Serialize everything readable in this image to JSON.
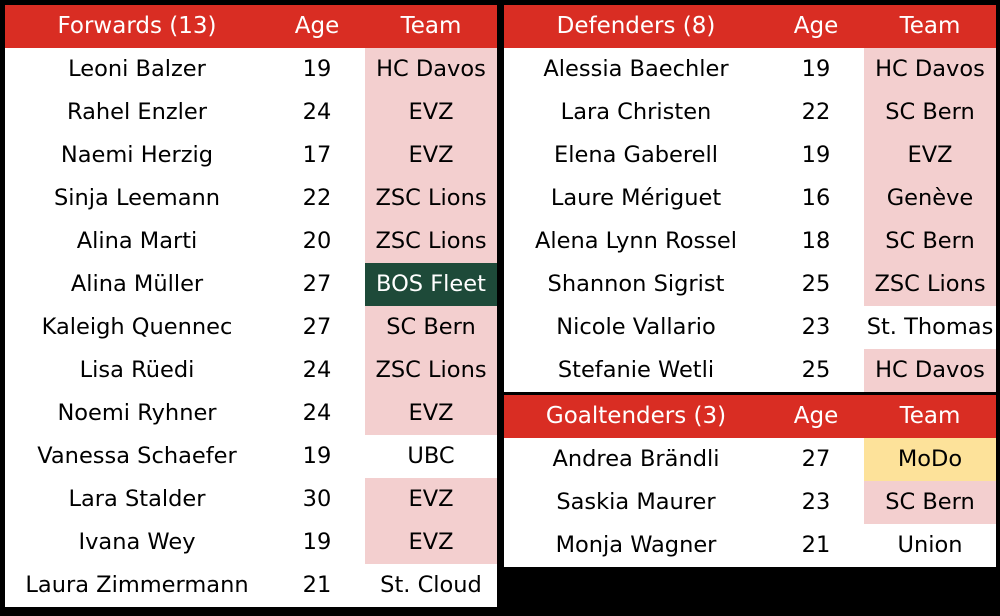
{
  "colors": {
    "header_bg": "#d92d23",
    "header_text": "#ffffff",
    "swiss_club_bg": "#f3cfcf",
    "nwhl_club_bg": "#1e4a39",
    "sdhl_club_bg": "#fde29a",
    "default_bg": "#ffffff",
    "frame": "#000000"
  },
  "forwards": {
    "header": {
      "position": "Forwards (13)",
      "age": "Age",
      "team": "Team"
    },
    "rows": [
      {
        "name": "Leoni Balzer",
        "age": "19",
        "team": "HC Davos",
        "style": "pink"
      },
      {
        "name": "Rahel Enzler",
        "age": "24",
        "team": "EVZ",
        "style": "pink"
      },
      {
        "name": "Naemi Herzig",
        "age": "17",
        "team": "EVZ",
        "style": "pink"
      },
      {
        "name": "Sinja Leemann",
        "age": "22",
        "team": "ZSC Lions",
        "style": "pink"
      },
      {
        "name": "Alina Marti",
        "age": "20",
        "team": "ZSC Lions",
        "style": "pink"
      },
      {
        "name": "Alina Müller",
        "age": "27",
        "team": "BOS Fleet",
        "style": "green"
      },
      {
        "name": "Kaleigh Quennec",
        "age": "27",
        "team": "SC Bern",
        "style": "pink"
      },
      {
        "name": "Lisa Rüedi",
        "age": "24",
        "team": "ZSC Lions",
        "style": "pink"
      },
      {
        "name": "Noemi Ryhner",
        "age": "24",
        "team": "EVZ",
        "style": "pink"
      },
      {
        "name": "Vanessa Schaefer",
        "age": "19",
        "team": "UBC",
        "style": "white"
      },
      {
        "name": "Lara Stalder",
        "age": "30",
        "team": "EVZ",
        "style": "pink"
      },
      {
        "name": "Ivana Wey",
        "age": "19",
        "team": "EVZ",
        "style": "pink"
      },
      {
        "name": "Laura Zimmermann",
        "age": "21",
        "team": "St. Cloud",
        "style": "white"
      }
    ]
  },
  "defenders": {
    "header": {
      "position": "Defenders (8)",
      "age": "Age",
      "team": "Team"
    },
    "rows": [
      {
        "name": "Alessia Baechler",
        "age": "19",
        "team": "HC Davos",
        "style": "pink"
      },
      {
        "name": "Lara Christen",
        "age": "22",
        "team": "SC Bern",
        "style": "pink"
      },
      {
        "name": "Elena Gaberell",
        "age": "19",
        "team": "EVZ",
        "style": "pink"
      },
      {
        "name": "Laure Mériguet",
        "age": "16",
        "team": "Genève",
        "style": "pink"
      },
      {
        "name": "Alena Lynn Rossel",
        "age": "18",
        "team": "SC Bern",
        "style": "pink"
      },
      {
        "name": "Shannon Sigrist",
        "age": "25",
        "team": "ZSC Lions",
        "style": "pink"
      },
      {
        "name": "Nicole Vallario",
        "age": "23",
        "team": "St. Thomas",
        "style": "white"
      },
      {
        "name": "Stefanie Wetli",
        "age": "25",
        "team": "HC Davos",
        "style": "pink"
      }
    ]
  },
  "goaltenders": {
    "header": {
      "position": "Goaltenders (3)",
      "age": "Age",
      "team": "Team"
    },
    "rows": [
      {
        "name": "Andrea Brändli",
        "age": "27",
        "team": "MoDo",
        "style": "yellow"
      },
      {
        "name": "Saskia Maurer",
        "age": "23",
        "team": "SC Bern",
        "style": "pink"
      },
      {
        "name": "Monja Wagner",
        "age": "21",
        "team": "Union",
        "style": "white"
      }
    ]
  }
}
